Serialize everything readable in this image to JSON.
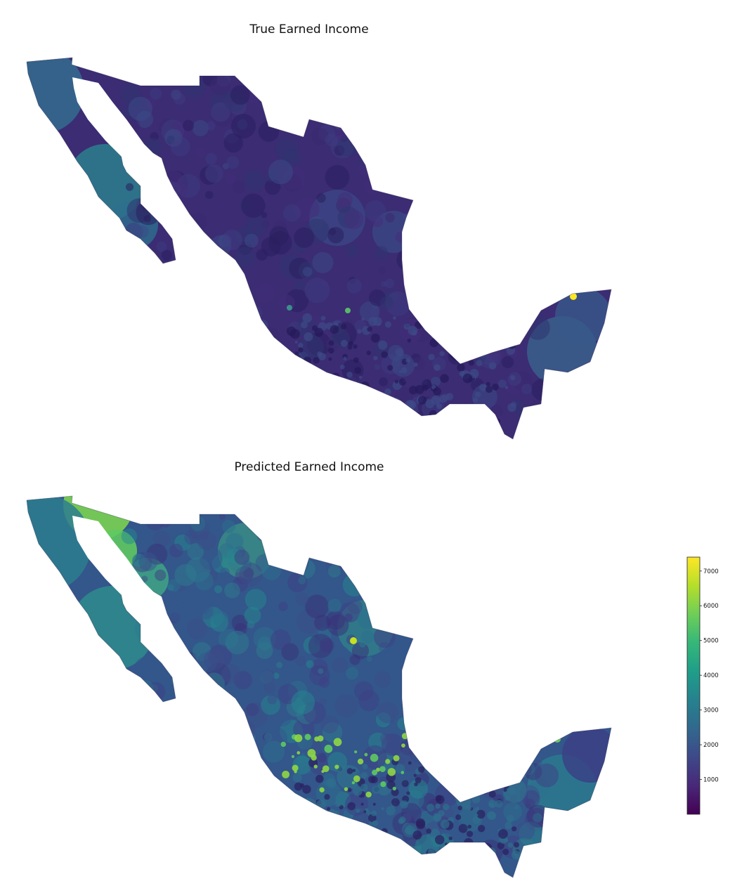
{
  "maps": [
    {
      "id": "top",
      "title": "True Earned Income",
      "base_color": "#3b2c73",
      "pattern": "true"
    },
    {
      "id": "bottom",
      "title": "Predicted Earned Income",
      "base_color": "#33568b",
      "pattern": "pred"
    }
  ],
  "colorbar": {
    "colormap": "viridis",
    "min": 0,
    "max": 7400,
    "ticks": [
      "1000",
      "2000",
      "3000",
      "4000",
      "5000",
      "6000",
      "7000"
    ]
  },
  "colors": {
    "viridis_low": "#440154",
    "viridis_mid": "#21918c",
    "viridis_high": "#fde725"
  }
}
